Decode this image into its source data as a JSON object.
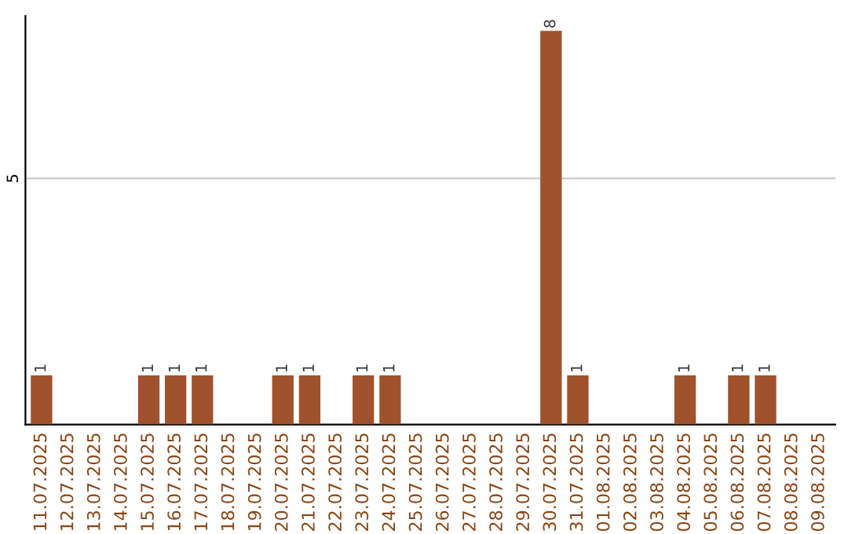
{
  "chart_data": {
    "type": "bar",
    "categories": [
      "11.07.2025",
      "12.07.2025",
      "13.07.2025",
      "14.07.2025",
      "15.07.2025",
      "16.07.2025",
      "17.07.2025",
      "18.07.2025",
      "19.07.2025",
      "20.07.2025",
      "21.07.2025",
      "22.07.2025",
      "23.07.2025",
      "24.07.2025",
      "25.07.2025",
      "26.07.2025",
      "27.07.2025",
      "28.07.2025",
      "29.07.2025",
      "30.07.2025",
      "31.07.2025",
      "01.08.2025",
      "02.08.2025",
      "03.08.2025",
      "04.08.2025",
      "05.08.2025",
      "06.08.2025",
      "07.08.2025",
      "08.08.2025",
      "09.08.2025"
    ],
    "values": [
      1,
      0,
      0,
      0,
      1,
      1,
      1,
      0,
      0,
      1,
      1,
      0,
      1,
      1,
      0,
      0,
      0,
      0,
      0,
      8,
      1,
      0,
      0,
      0,
      1,
      0,
      1,
      1,
      0,
      0
    ],
    "value_labels": [
      "1",
      null,
      null,
      null,
      "1",
      "1",
      "1",
      null,
      null,
      "1",
      "1",
      null,
      "1",
      "1",
      null,
      null,
      null,
      null,
      null,
      "8",
      "1",
      null,
      null,
      null,
      "1",
      null,
      "1",
      "1",
      null,
      null
    ],
    "color": "#a0522d",
    "ylim": [
      0,
      8.3
    ],
    "yticks": [
      5
    ],
    "grid": "y"
  }
}
